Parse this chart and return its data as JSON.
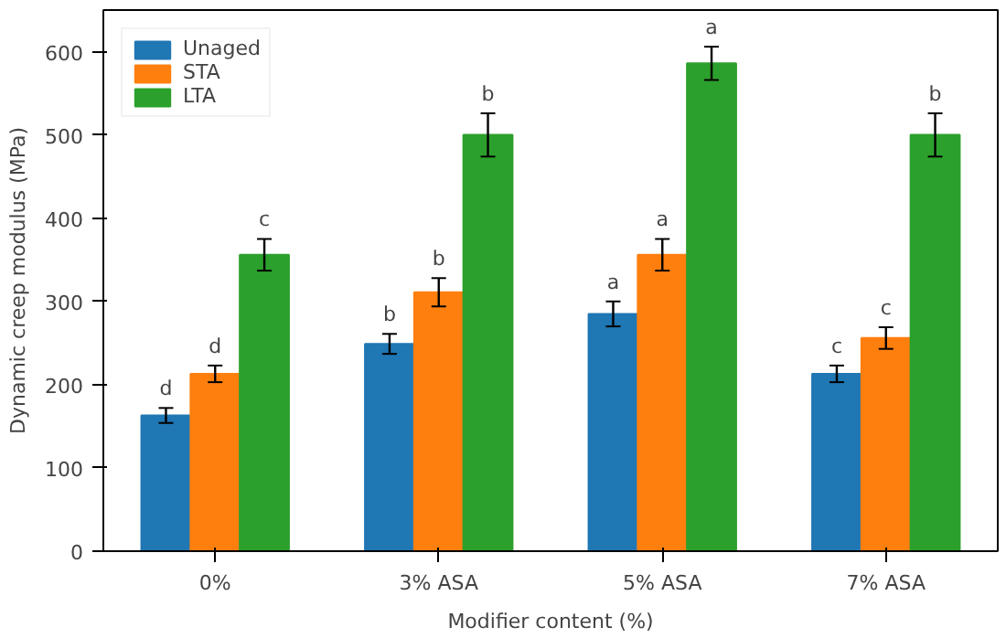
{
  "chart_data": {
    "type": "bar",
    "xlabel": "Modifier content (%)",
    "ylabel": "Dynamic creep modulus (MPa)",
    "categories": [
      "0%",
      "3% ASA",
      "5% ASA",
      "7% ASA"
    ],
    "series": [
      {
        "name": "Unaged",
        "color": "#1f77b4",
        "values": [
          163,
          249,
          285,
          213
        ],
        "errors": [
          9,
          12,
          15,
          10
        ],
        "value_labels": [
          "d",
          "b",
          "a",
          "c"
        ]
      },
      {
        "name": "STA",
        "color": "#ff7f0e",
        "values": [
          213,
          311,
          356,
          256
        ],
        "errors": [
          10,
          17,
          19,
          13
        ],
        "value_labels": [
          "d",
          "b",
          "a",
          "c"
        ]
      },
      {
        "name": "LTA",
        "color": "#2ca02c",
        "values": [
          356,
          500,
          586,
          500
        ],
        "errors": [
          19,
          26,
          20,
          26
        ],
        "value_labels": [
          "c",
          "b",
          "a",
          "b"
        ]
      }
    ],
    "ylim": [
      0,
      650
    ],
    "yticks": [
      0,
      100,
      200,
      300,
      400,
      500,
      600
    ],
    "grid": false,
    "legend": "top left"
  }
}
